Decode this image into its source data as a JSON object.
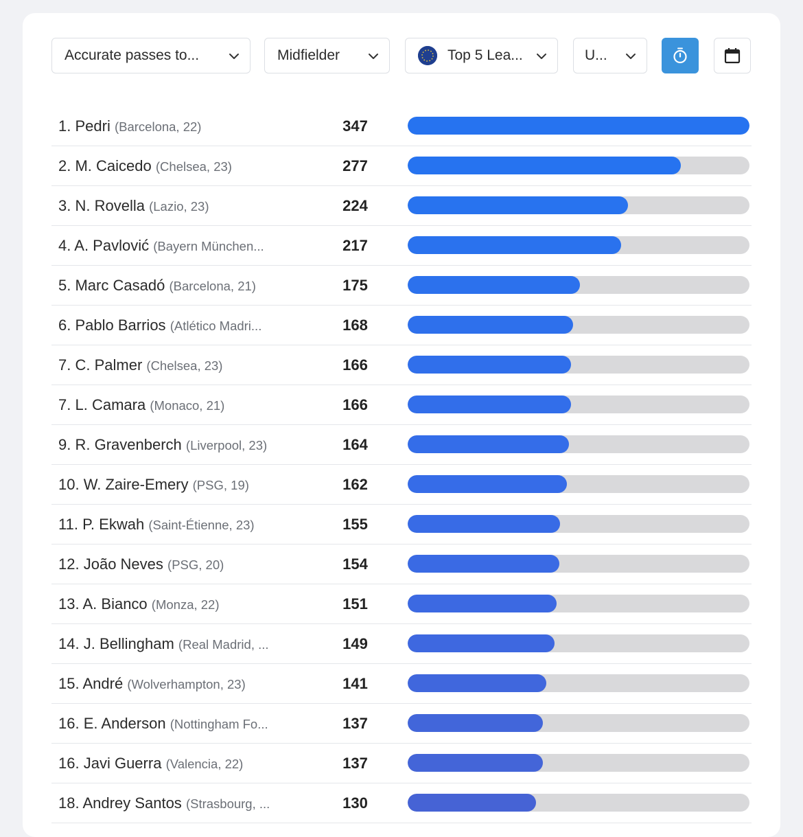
{
  "filters": {
    "stat": "Accurate passes to...",
    "position": "Midfielder",
    "league": "Top 5 Lea...",
    "age": "U..."
  },
  "ranking": [
    {
      "rank": "1.",
      "name": "Pedri",
      "meta": "(Barcelona, 22)",
      "value": 347,
      "color": "#2673f0"
    },
    {
      "rank": "2.",
      "name": "M. Caicedo",
      "meta": "(Chelsea, 23)",
      "value": 277,
      "color": "#2673f0"
    },
    {
      "rank": "3.",
      "name": "N. Rovella",
      "meta": "(Lazio, 23)",
      "value": 224,
      "color": "#2873ef"
    },
    {
      "rank": "4.",
      "name": "A. Pavlović",
      "meta": "(Bayern München...",
      "value": 217,
      "color": "#2a72ee"
    },
    {
      "rank": "5.",
      "name": "Marc Casadó",
      "meta": "(Barcelona, 21)",
      "value": 175,
      "color": "#2c71ed"
    },
    {
      "rank": "6.",
      "name": "Pablo Barrios",
      "meta": "(Atlético Madri...",
      "value": 168,
      "color": "#2e70ec"
    },
    {
      "rank": "7.",
      "name": "C. Palmer",
      "meta": "(Chelsea, 23)",
      "value": 166,
      "color": "#306feb"
    },
    {
      "rank": "7.",
      "name": "L. Camara",
      "meta": "(Monaco, 21)",
      "value": 166,
      "color": "#326eea"
    },
    {
      "rank": "9.",
      "name": "R. Gravenberch",
      "meta": "(Liverpool, 23)",
      "value": 164,
      "color": "#346de9"
    },
    {
      "rank": "10.",
      "name": "W. Zaire-Emery",
      "meta": "(PSG, 19)",
      "value": 162,
      "color": "#366ce8"
    },
    {
      "rank": "11.",
      "name": "P. Ekwah",
      "meta": "(Saint-Étienne, 23)",
      "value": 155,
      "color": "#386be6"
    },
    {
      "rank": "12.",
      "name": "João Neves",
      "meta": "(PSG, 20)",
      "value": 154,
      "color": "#3a6ae4"
    },
    {
      "rank": "13.",
      "name": "A. Bianco",
      "meta": "(Monza, 22)",
      "value": 151,
      "color": "#3c69e2"
    },
    {
      "rank": "14.",
      "name": "J. Bellingham",
      "meta": "(Real Madrid, ...",
      "value": 149,
      "color": "#3e68e0"
    },
    {
      "rank": "15.",
      "name": "André",
      "meta": "(Wolverhampton, 23)",
      "value": 141,
      "color": "#4067dd"
    },
    {
      "rank": "16.",
      "name": "E. Anderson",
      "meta": "(Nottingham Fo...",
      "value": 137,
      "color": "#4266da"
    },
    {
      "rank": "16.",
      "name": "Javi Guerra",
      "meta": "(Valencia, 22)",
      "value": 137,
      "color": "#4465d8"
    },
    {
      "rank": "18.",
      "name": "Andrey Santos",
      "meta": "(Strasbourg, ...",
      "value": 130,
      "color": "#4663d5"
    }
  ],
  "max_value": 347,
  "colors": {
    "track": "#d9d9db",
    "accent": "#3a93dc"
  }
}
